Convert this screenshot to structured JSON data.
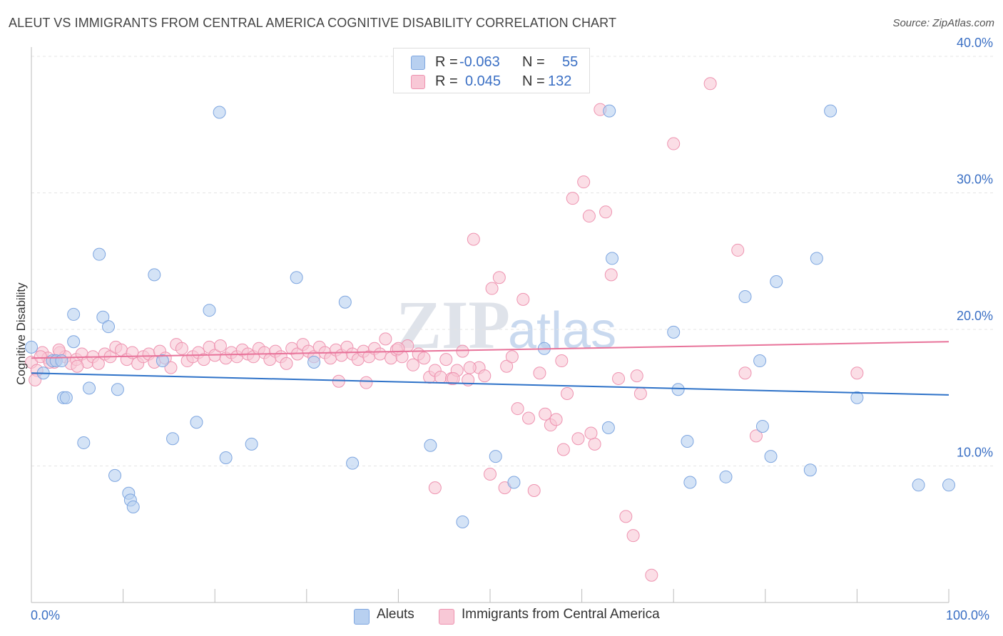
{
  "title": "ALEUT VS IMMIGRANTS FROM CENTRAL AMERICA COGNITIVE DISABILITY CORRELATION CHART",
  "source": "Source: ZipAtlas.com",
  "watermark": "ZIPatlas",
  "legend_top": {
    "rows": [
      {
        "r_label": "R =",
        "r_value": "-0.063",
        "n_label": "N =",
        "n_value": "55"
      },
      {
        "r_label": "R =",
        "r_value": "0.045",
        "n_label": "N =",
        "n_value": "132"
      }
    ]
  },
  "bottom_legend": {
    "series1": "Aleuts",
    "series2": "Immigrants from Central America"
  },
  "colors": {
    "blue_fill": "#b8d0f0",
    "blue_stroke": "#7ea6e0",
    "blue_line": "#2e72c8",
    "pink_fill": "#f8c8d6",
    "pink_stroke": "#ee93b0",
    "pink_line": "#e8739a",
    "tick_text": "#3a6fc4"
  },
  "chart_data": {
    "type": "scatter",
    "title": "ALEUT VS IMMIGRANTS FROM CENTRAL AMERICA COGNITIVE DISABILITY CORRELATION CHART",
    "xlabel": "",
    "ylabel": "Cognitive Disability",
    "xlim": [
      0,
      100
    ],
    "ylim": [
      0,
      40
    ],
    "x_tick_labels": [
      "0.0%",
      "100.0%"
    ],
    "y_ticks": [
      10,
      20,
      30,
      40
    ],
    "y_tick_labels": [
      "10.0%",
      "20.0%",
      "30.0%",
      "40.0%"
    ],
    "grid": true,
    "legend_position": "top-center",
    "series": [
      {
        "name": "Aleuts",
        "color": "#b8d0f0",
        "trend": {
          "x": [
            0,
            100
          ],
          "y": [
            16.8,
            15.2
          ]
        },
        "points": [
          [
            0,
            18.7
          ],
          [
            1.3,
            16.8
          ],
          [
            2.3,
            17.7
          ],
          [
            2.7,
            17.7
          ],
          [
            3.3,
            17.7
          ],
          [
            3.5,
            15.0
          ],
          [
            3.8,
            15.0
          ],
          [
            4.6,
            21.1
          ],
          [
            4.6,
            19.1
          ],
          [
            5.7,
            11.7
          ],
          [
            6.3,
            15.7
          ],
          [
            7.4,
            25.5
          ],
          [
            7.8,
            20.9
          ],
          [
            8.4,
            20.2
          ],
          [
            9.1,
            9.3
          ],
          [
            9.4,
            15.6
          ],
          [
            10.6,
            8.0
          ],
          [
            10.8,
            7.5
          ],
          [
            11.1,
            7.0
          ],
          [
            13.4,
            24.0
          ],
          [
            14.3,
            17.7
          ],
          [
            15.4,
            12.0
          ],
          [
            18.0,
            13.2
          ],
          [
            19.4,
            21.4
          ],
          [
            20.5,
            35.9
          ],
          [
            21.2,
            10.6
          ],
          [
            24.0,
            11.6
          ],
          [
            28.9,
            23.8
          ],
          [
            30.8,
            17.6
          ],
          [
            34.2,
            22.0
          ],
          [
            35.0,
            10.2
          ],
          [
            43.5,
            11.5
          ],
          [
            47.0,
            5.9
          ],
          [
            50.6,
            10.7
          ],
          [
            52.6,
            8.8
          ],
          [
            55.9,
            18.6
          ],
          [
            62.9,
            12.8
          ],
          [
            63.3,
            25.2
          ],
          [
            70.0,
            19.8
          ],
          [
            70.5,
            15.6
          ],
          [
            71.5,
            11.8
          ],
          [
            71.8,
            8.8
          ],
          [
            75.7,
            9.2
          ],
          [
            77.8,
            22.4
          ],
          [
            79.4,
            17.7
          ],
          [
            79.7,
            12.9
          ],
          [
            80.6,
            10.7
          ],
          [
            81.2,
            23.5
          ],
          [
            84.9,
            9.7
          ],
          [
            85.6,
            25.2
          ],
          [
            87.1,
            36.0
          ],
          [
            90.0,
            15.0
          ],
          [
            96.7,
            8.6
          ],
          [
            100,
            8.6
          ],
          [
            63.0,
            36.0
          ]
        ]
      },
      {
        "name": "Immigrants from Central America",
        "color": "#f8c8d6",
        "trend": {
          "x": [
            0,
            100
          ],
          "y": [
            17.9,
            19.1
          ]
        },
        "points": [
          [
            0,
            17.6
          ],
          [
            0.6,
            17.0
          ],
          [
            1.2,
            18.3
          ],
          [
            1.8,
            17.9
          ],
          [
            2.5,
            17.6
          ],
          [
            3.1,
            18.3
          ],
          [
            3.7,
            18.0
          ],
          [
            4.3,
            17.5
          ],
          [
            4.9,
            17.8
          ],
          [
            5.5,
            18.2
          ],
          [
            6.1,
            17.6
          ],
          [
            6.7,
            18.0
          ],
          [
            7.3,
            17.5
          ],
          [
            8.0,
            18.2
          ],
          [
            8.6,
            18.0
          ],
          [
            9.2,
            18.7
          ],
          [
            9.8,
            18.5
          ],
          [
            10.4,
            17.8
          ],
          [
            11.0,
            18.3
          ],
          [
            11.6,
            17.5
          ],
          [
            12.2,
            18.0
          ],
          [
            12.8,
            18.2
          ],
          [
            13.4,
            17.6
          ],
          [
            14.0,
            18.4
          ],
          [
            14.6,
            17.9
          ],
          [
            15.2,
            17.2
          ],
          [
            15.8,
            18.9
          ],
          [
            16.4,
            18.6
          ],
          [
            17.0,
            17.7
          ],
          [
            17.6,
            18.0
          ],
          [
            18.2,
            18.3
          ],
          [
            18.8,
            17.8
          ],
          [
            19.4,
            18.7
          ],
          [
            20.0,
            18.1
          ],
          [
            20.6,
            18.8
          ],
          [
            21.2,
            17.9
          ],
          [
            21.8,
            18.3
          ],
          [
            22.4,
            18.0
          ],
          [
            23.0,
            18.5
          ],
          [
            23.6,
            18.2
          ],
          [
            24.2,
            18.0
          ],
          [
            24.8,
            18.6
          ],
          [
            25.4,
            18.3
          ],
          [
            26.0,
            17.8
          ],
          [
            26.6,
            18.4
          ],
          [
            27.2,
            18.0
          ],
          [
            27.8,
            17.5
          ],
          [
            28.4,
            18.6
          ],
          [
            29.0,
            18.2
          ],
          [
            29.6,
            18.9
          ],
          [
            30.2,
            18.4
          ],
          [
            30.8,
            18.0
          ],
          [
            31.4,
            18.7
          ],
          [
            32.0,
            18.3
          ],
          [
            32.6,
            17.9
          ],
          [
            33.2,
            18.5
          ],
          [
            33.8,
            18.1
          ],
          [
            34.4,
            18.7
          ],
          [
            35.0,
            18.2
          ],
          [
            35.6,
            17.8
          ],
          [
            36.2,
            18.4
          ],
          [
            36.8,
            18.0
          ],
          [
            37.4,
            18.6
          ],
          [
            38.0,
            18.2
          ],
          [
            38.6,
            19.3
          ],
          [
            39.2,
            17.9
          ],
          [
            39.8,
            18.5
          ],
          [
            40.4,
            18.0
          ],
          [
            41.0,
            18.8
          ],
          [
            41.6,
            17.4
          ],
          [
            42.2,
            18.2
          ],
          [
            42.8,
            17.9
          ],
          [
            43.4,
            16.5
          ],
          [
            44.0,
            17.0
          ],
          [
            44.6,
            16.5
          ],
          [
            45.2,
            17.8
          ],
          [
            45.8,
            16.4
          ],
          [
            46.4,
            17.0
          ],
          [
            47.0,
            18.4
          ],
          [
            47.6,
            16.3
          ],
          [
            48.2,
            26.6
          ],
          [
            48.8,
            17.2
          ],
          [
            49.4,
            16.6
          ],
          [
            50.2,
            23.0
          ],
          [
            51.0,
            23.8
          ],
          [
            51.8,
            17.3
          ],
          [
            52.4,
            18.0
          ],
          [
            53.0,
            14.2
          ],
          [
            53.6,
            22.2
          ],
          [
            54.2,
            13.5
          ],
          [
            54.8,
            8.2
          ],
          [
            55.4,
            16.8
          ],
          [
            56.0,
            13.8
          ],
          [
            56.6,
            13.0
          ],
          [
            57.2,
            13.4
          ],
          [
            57.8,
            17.7
          ],
          [
            58.4,
            15.3
          ],
          [
            59.0,
            29.6
          ],
          [
            59.6,
            12.0
          ],
          [
            60.2,
            30.8
          ],
          [
            60.8,
            28.3
          ],
          [
            61.4,
            11.6
          ],
          [
            62.0,
            36.1
          ],
          [
            62.6,
            28.6
          ],
          [
            63.2,
            24.0
          ],
          [
            64.0,
            16.4
          ],
          [
            64.8,
            6.3
          ],
          [
            65.6,
            4.9
          ],
          [
            66.4,
            15.3
          ],
          [
            67.6,
            2.0
          ],
          [
            70.0,
            33.6
          ],
          [
            74.0,
            38.0
          ],
          [
            77.0,
            25.8
          ],
          [
            77.8,
            16.8
          ],
          [
            79.0,
            12.2
          ],
          [
            90.0,
            16.8
          ],
          [
            0.4,
            16.3
          ],
          [
            1.0,
            18.0
          ],
          [
            2.0,
            17.6
          ],
          [
            3.0,
            18.5
          ],
          [
            5.0,
            17.3
          ],
          [
            40.0,
            18.6
          ],
          [
            44.0,
            8.4
          ],
          [
            46.0,
            16.4
          ],
          [
            50.0,
            9.4
          ],
          [
            58.0,
            11.2
          ],
          [
            61.0,
            12.4
          ],
          [
            66.0,
            16.6
          ],
          [
            33.5,
            16.2
          ],
          [
            36.5,
            16.1
          ],
          [
            47.8,
            17.2
          ],
          [
            51.6,
            8.4
          ]
        ]
      }
    ]
  }
}
